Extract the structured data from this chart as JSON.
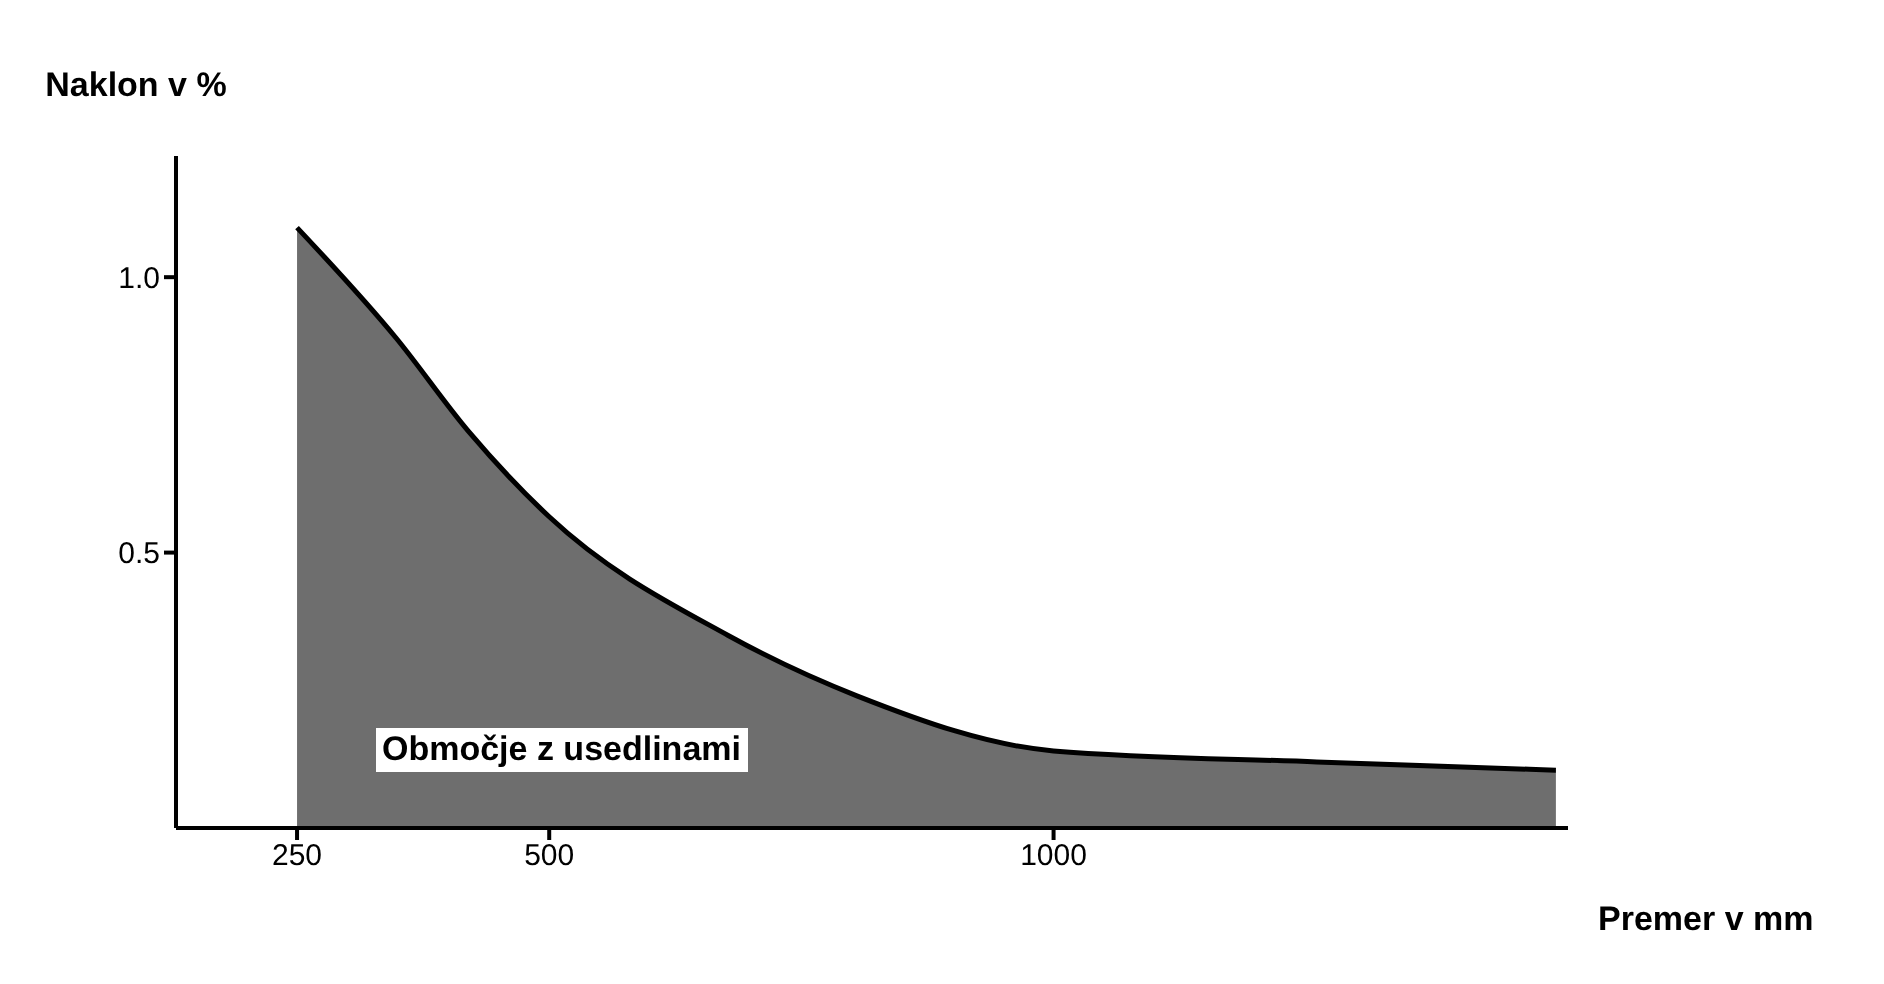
{
  "chart_data": {
    "type": "area",
    "xlabel": "Premer v mm",
    "ylabel": "Naklon v %",
    "x": [
      250,
      348,
      420,
      500,
      677,
      805,
      1000,
      1261,
      1498
    ],
    "series": [
      {
        "color": "#555555",
        "values": [
          1.09,
          0.89,
          0.72,
          0.565,
          0.35,
          0.24,
          0.14,
          0.12,
          0.105
        ]
      }
    ],
    "xlim": [
      130,
      1510
    ],
    "xticks": [
      250,
      500,
      1000
    ],
    "ylim": [
      0,
      1.22
    ],
    "yticks": [
      {
        "value": 0.5,
        "label": "0.5"
      },
      {
        "value": 1,
        "label": "1.0"
      }
    ],
    "grid": false,
    "annotations": [
      "Območje z usedlinami"
    ]
  }
}
